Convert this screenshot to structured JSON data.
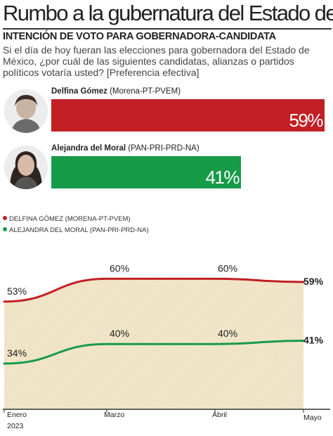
{
  "headline": "Rumbo a la gubernatura del Estado de México",
  "subtitle": "INTENCIÓN DE VOTO PARA GOBERNADORA-CANDIDATA",
  "question": "Si el día de hoy fueran las elecciones para gobernadora del Estado de México, ¿por cuál de las siguientes candidatas, alianzas o partidos políticos votaría usted? [Preferencia efectiva]",
  "candidates": [
    {
      "name": "Delfina Gómez",
      "party": "(Morena-PT-PVEM)",
      "value": 59,
      "label": "59%",
      "color": "#c21f24"
    },
    {
      "name": "Alejandra del Moral",
      "party": "(PAN-PRI-PRD-NA)",
      "value": 41,
      "label": "41%",
      "color": "#169b49"
    }
  ],
  "legend": [
    {
      "label": "DELFINA GÓMEZ (MORENA-PT-PVEM)",
      "color": "#c21f24"
    },
    {
      "label": "ALEJANDRA DEL MORAL (PAN-PRI-PRD-NA)",
      "color": "#169b49"
    }
  ],
  "chart_data": {
    "type": "line",
    "categories": [
      "Enero 2023",
      "Marzo",
      "Abril",
      "Mayo"
    ],
    "tick_labels": [
      {
        "line1": "Enero",
        "line2": "2023"
      },
      {
        "line1": "Marzo",
        "line2": ""
      },
      {
        "line1": "Abril",
        "line2": ""
      },
      {
        "line1": "Mayo",
        "line2": ""
      }
    ],
    "series": [
      {
        "name": "DELFINA GÓMEZ (MORENA-PT-PVEM)",
        "values": [
          53,
          60,
          60,
          59
        ],
        "labels": [
          "53%",
          "60%",
          "60%",
          "59%"
        ],
        "color": "#c21f24"
      },
      {
        "name": "ALEJANDRA DEL MORAL (PAN-PRI-PRD-NA)",
        "values": [
          34,
          40,
          40,
          41
        ],
        "labels": [
          "34%",
          "40%",
          "40%",
          "41%"
        ],
        "color": "#169b49"
      }
    ],
    "ylim": [
      0,
      70
    ],
    "grid": false,
    "area_fill": "#f1e6c9",
    "legend_placement": "top-left"
  }
}
